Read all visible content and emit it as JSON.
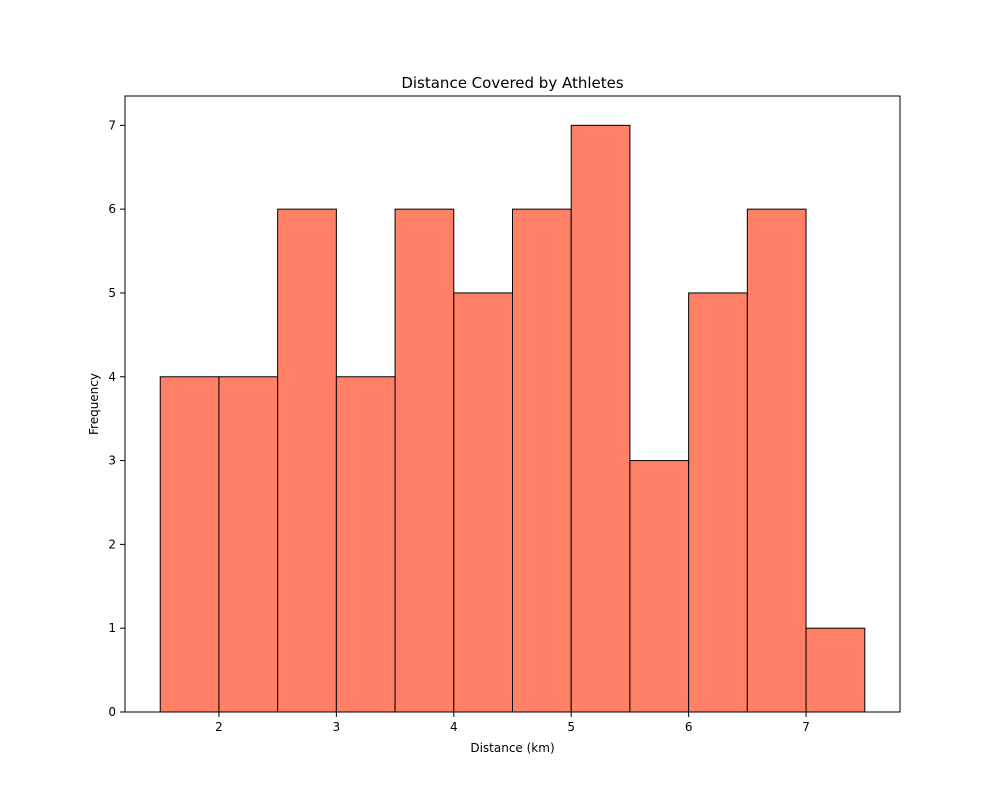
{
  "chart_data": {
    "type": "bar",
    "title": "Distance Covered by Athletes",
    "xlabel": "Distance (km)",
    "ylabel": "Frequency",
    "histogram": true,
    "bins": [
      {
        "x0": 1.5,
        "x1": 2.0,
        "count": 4
      },
      {
        "x0": 2.0,
        "x1": 2.5,
        "count": 4
      },
      {
        "x0": 2.5,
        "x1": 3.0,
        "count": 6
      },
      {
        "x0": 3.0,
        "x1": 3.5,
        "count": 4
      },
      {
        "x0": 3.5,
        "x1": 4.0,
        "count": 6
      },
      {
        "x0": 4.0,
        "x1": 4.5,
        "count": 5
      },
      {
        "x0": 4.5,
        "x1": 5.0,
        "count": 6
      },
      {
        "x0": 5.0,
        "x1": 5.5,
        "count": 7
      },
      {
        "x0": 5.5,
        "x1": 6.0,
        "count": 3
      },
      {
        "x0": 6.0,
        "x1": 6.5,
        "count": 5
      },
      {
        "x0": 6.5,
        "x1": 7.0,
        "count": 6
      },
      {
        "x0": 7.0,
        "x1": 7.5,
        "count": 1
      }
    ],
    "xlim": [
      1.2,
      7.8
    ],
    "ylim": [
      0,
      7.35
    ],
    "xticks": [
      2,
      3,
      4,
      5,
      6,
      7
    ],
    "yticks": [
      0,
      1,
      2,
      3,
      4,
      5,
      6,
      7
    ],
    "grid": false,
    "colors": {
      "bar_fill": "#ff8066",
      "bar_edge": "#000000"
    }
  }
}
